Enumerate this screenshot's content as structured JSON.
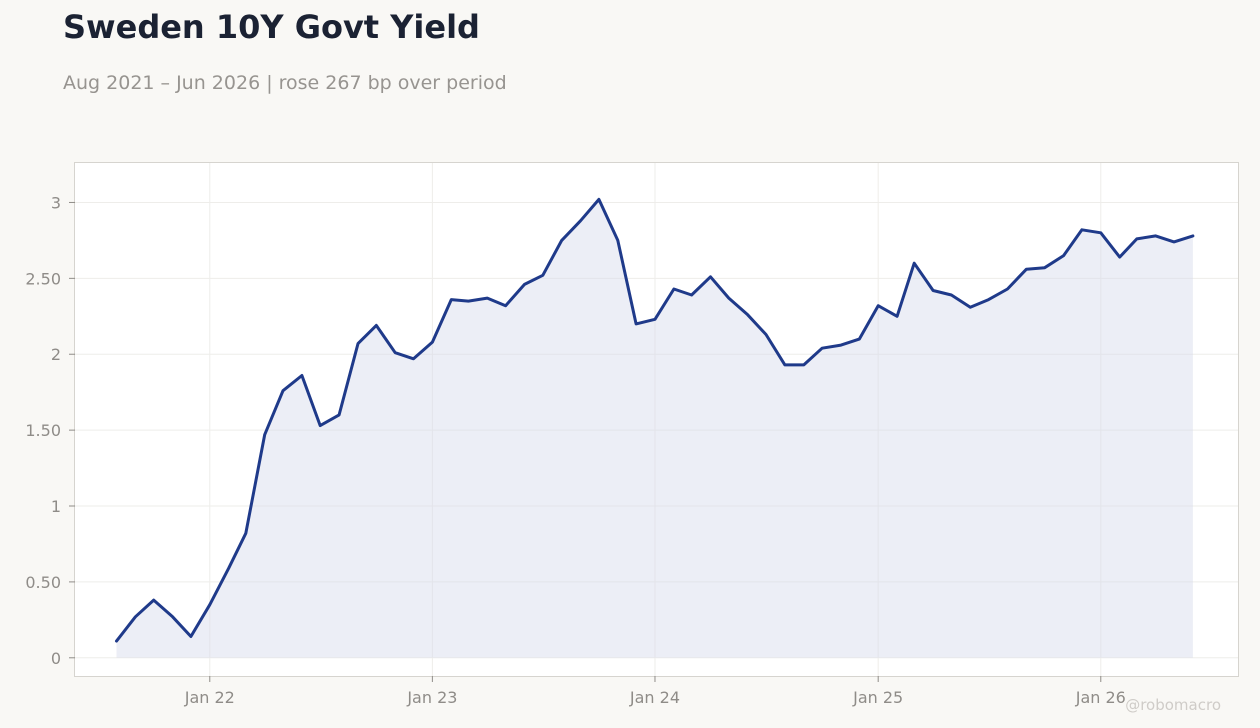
{
  "chart_data": {
    "type": "area",
    "title": "Sweden 10Y Govt Yield",
    "subtitle": "Aug 2021 – Jun 2026 | rose 267 bp over period",
    "xlabel": "",
    "ylabel": "",
    "ylim": [
      -0.12,
      3.26
    ],
    "y_ticks": [
      0,
      0.5,
      1,
      1.5,
      2,
      2.5,
      3
    ],
    "y_tick_labels": [
      "0",
      "0.50",
      "1",
      "1.50",
      "2",
      "2.50",
      "3"
    ],
    "x_tick_dates": [
      "2022-01",
      "2023-01",
      "2024-01",
      "2025-01",
      "2026-01"
    ],
    "x_tick_labels": [
      "Jan 22",
      "Jan 23",
      "Jan 24",
      "Jan 25",
      "Jan 26"
    ],
    "xlim": [
      "2021-05-25",
      "2026-08-14"
    ],
    "grid": true,
    "line_color": "#1f3a8a",
    "fill_color": "#d4d9ec",
    "series": [
      {
        "x": [
          "2021-08",
          "2021-09",
          "2021-10",
          "2021-11",
          "2021-12",
          "2022-01",
          "2022-02",
          "2022-03",
          "2022-04",
          "2022-05",
          "2022-06",
          "2022-07",
          "2022-08",
          "2022-09",
          "2022-10",
          "2022-11",
          "2022-12",
          "2023-01",
          "2023-02",
          "2023-03",
          "2023-04",
          "2023-05",
          "2023-06",
          "2023-07",
          "2023-08",
          "2023-09",
          "2023-10",
          "2023-11",
          "2023-12",
          "2024-01",
          "2024-02",
          "2024-03",
          "2024-04",
          "2024-05",
          "2024-06",
          "2024-07",
          "2024-08",
          "2024-09",
          "2024-10",
          "2024-11",
          "2024-12",
          "2025-01",
          "2025-02",
          "2025-03",
          "2025-04",
          "2025-05",
          "2025-06",
          "2025-07",
          "2025-08",
          "2025-09",
          "2025-10",
          "2025-11",
          "2025-12",
          "2026-01",
          "2026-02",
          "2026-03",
          "2026-04",
          "2026-05",
          "2026-06"
        ],
        "values": [
          0.11,
          0.27,
          0.38,
          0.27,
          0.14,
          0.35,
          0.59,
          0.82,
          1.47,
          1.76,
          1.86,
          1.53,
          1.6,
          2.07,
          2.19,
          2.01,
          1.97,
          2.08,
          2.36,
          2.35,
          2.37,
          2.32,
          2.46,
          2.52,
          2.75,
          2.88,
          3.02,
          2.75,
          2.2,
          2.23,
          2.43,
          2.39,
          2.51,
          2.37,
          2.26,
          2.13,
          1.93,
          1.93,
          2.04,
          2.06,
          2.1,
          2.32,
          2.25,
          2.6,
          2.42,
          2.39,
          2.31,
          2.36,
          2.43,
          2.56,
          2.57,
          2.65,
          2.82,
          2.8,
          2.64,
          2.76,
          2.78,
          2.74,
          2.78
        ]
      }
    ]
  },
  "watermark": "@robomacro"
}
